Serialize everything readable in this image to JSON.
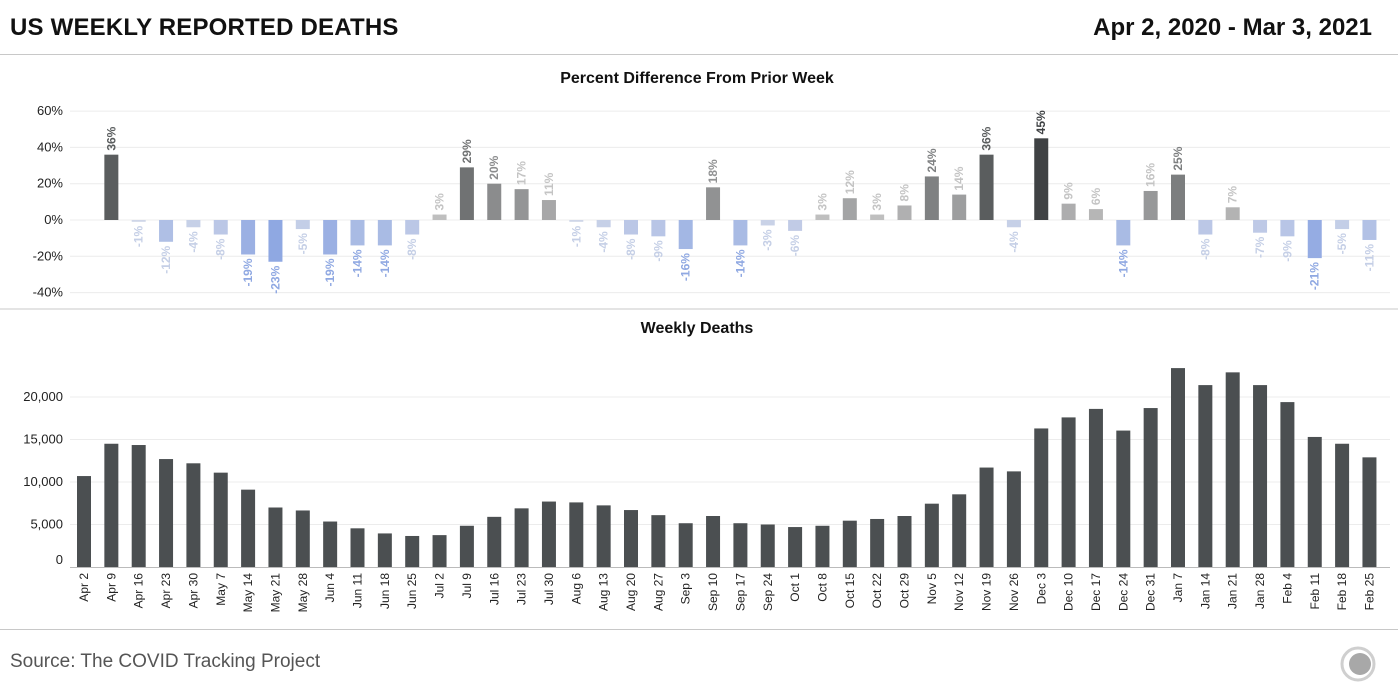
{
  "header": {
    "title": "US WEEKLY REPORTED DEATHS",
    "date_range": "Apr 2, 2020 - Mar 3, 2021"
  },
  "footer": {
    "source": "Source: The COVID Tracking Project",
    "logo_icon": "covid-tracking-project-logo-icon"
  },
  "colors": {
    "deaths_bar": "#4b4f51",
    "increase_dark": "#3f4244",
    "increase_light": "#c8c8c8",
    "decrease_strong": "#8fa8e2",
    "decrease_light": "#c9d3ea",
    "grid": "#ececec"
  },
  "chart_data": [
    {
      "type": "bar",
      "title": "Percent Difference From Prior Week",
      "unit": "%",
      "categories": [
        "Apr 2",
        "Apr 9",
        "Apr 16",
        "Apr 23",
        "Apr 30",
        "May 7",
        "May 14",
        "May 21",
        "May 28",
        "Jun 4",
        "Jun 11",
        "Jun 18",
        "Jun 25",
        "Jul 2",
        "Jul 9",
        "Jul 16",
        "Jul 23",
        "Jul 30",
        "Aug 6",
        "Aug 13",
        "Aug 20",
        "Aug 27",
        "Sep 3",
        "Sep 10",
        "Sep 17",
        "Sep 24",
        "Oct 1",
        "Oct 8",
        "Oct 15",
        "Oct 22",
        "Oct 29",
        "Nov 5",
        "Nov 12",
        "Nov 19",
        "Nov 26",
        "Dec 3",
        "Dec 10",
        "Dec 17",
        "Dec 24",
        "Dec 31",
        "Jan 7",
        "Jan 14",
        "Jan 21",
        "Jan 28",
        "Feb 4",
        "Feb 11",
        "Feb 18",
        "Feb 25"
      ],
      "values": [
        null,
        36,
        -1,
        -12,
        -4,
        -8,
        -19,
        -23,
        -5,
        -19,
        -14,
        -14,
        -8,
        3,
        29,
        20,
        17,
        11,
        -1,
        -4,
        -8,
        -9,
        -16,
        18,
        -14,
        -3,
        -6,
        3,
        12,
        3,
        8,
        24,
        14,
        36,
        -4,
        45,
        9,
        6,
        -14,
        16,
        25,
        -8,
        7,
        -7,
        -9,
        -21,
        -5,
        -11
      ],
      "value_labels": [
        "",
        "36%",
        "-1%",
        "-12%",
        "-4%",
        "-8%",
        "-19%",
        "-23%",
        "-5%",
        "-19%",
        "-14%",
        "-14%",
        "-8%",
        "3%",
        "29%",
        "20%",
        "17%",
        "11%",
        "-1%",
        "-4%",
        "-8%",
        "-9%",
        "-16%",
        "18%",
        "-14%",
        "-3%",
        "-6%",
        "3%",
        "12%",
        "3%",
        "8%",
        "24%",
        "14%",
        "36%",
        "-4%",
        "45%",
        "9%",
        "6%",
        "-14%",
        "16%",
        "25%",
        "-8%",
        "7%",
        "-7%",
        "-9%",
        "-21%",
        "-5%",
        "-11%"
      ],
      "yticks": [
        60,
        40,
        20,
        0,
        -20,
        -40
      ],
      "ytick_labels": [
        "60%",
        "40%",
        "20%",
        "0%",
        "-20%",
        "-40%"
      ],
      "ylim": [
        -40,
        60
      ],
      "grid": true
    },
    {
      "type": "bar",
      "title": "Weekly Deaths",
      "categories": [
        "Apr 2",
        "Apr 9",
        "Apr 16",
        "Apr 23",
        "Apr 30",
        "May 7",
        "May 14",
        "May 21",
        "May 28",
        "Jun 4",
        "Jun 11",
        "Jun 18",
        "Jun 25",
        "Jul 2",
        "Jul 9",
        "Jul 16",
        "Jul 23",
        "Jul 30",
        "Aug 6",
        "Aug 13",
        "Aug 20",
        "Aug 27",
        "Sep 3",
        "Sep 10",
        "Sep 17",
        "Sep 24",
        "Oct 1",
        "Oct 8",
        "Oct 15",
        "Oct 22",
        "Oct 29",
        "Nov 5",
        "Nov 12",
        "Nov 19",
        "Nov 26",
        "Dec 3",
        "Dec 10",
        "Dec 17",
        "Dec 24",
        "Dec 31",
        "Jan 7",
        "Jan 14",
        "Jan 21",
        "Jan 28",
        "Feb 4",
        "Feb 11",
        "Feb 18",
        "Feb 25"
      ],
      "values": [
        10700,
        14500,
        14350,
        12700,
        12200,
        11100,
        9100,
        7000,
        6650,
        5350,
        4550,
        3950,
        3650,
        3750,
        4850,
        5900,
        6900,
        7700,
        7600,
        7250,
        6700,
        6100,
        5150,
        6000,
        5150,
        5000,
        4700,
        4850,
        5450,
        5650,
        6000,
        7450,
        8550,
        11700,
        11250,
        16300,
        17600,
        18600,
        16050,
        18700,
        23400,
        21400,
        22900,
        21400,
        19400,
        15300,
        14500,
        12900
      ],
      "yticks": [
        0,
        5000,
        10000,
        15000,
        20000
      ],
      "ytick_labels": [
        "0",
        "5,000",
        "10,000",
        "15,000",
        "20,000"
      ],
      "ylim": [
        0,
        23400
      ],
      "grid": true
    }
  ]
}
